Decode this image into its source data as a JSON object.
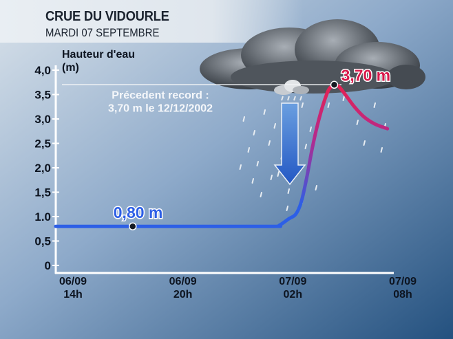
{
  "header": {
    "title": "CRUE DU VIDOURLE",
    "subtitle": "MARDI 07 SEPTEMBRE"
  },
  "chart_data": {
    "type": "line",
    "ylabel_line1": "Hauteur d'eau",
    "ylabel_line2": "(m)",
    "ylim": [
      0,
      4.0
    ],
    "yticks": [
      0,
      0.5,
      1.0,
      1.5,
      2.0,
      2.5,
      3.0,
      3.5,
      4.0
    ],
    "ytick_labels": [
      "0",
      "0,5",
      "1.0",
      "1,5",
      "2,0",
      "2,5",
      "3,0",
      "3,5",
      "4,0"
    ],
    "x_unit": "hours since 06/09 14h",
    "xlim": [
      0,
      18.3
    ],
    "xticks": [
      {
        "pos": 0,
        "line1": "06/09",
        "line2": "14h"
      },
      {
        "pos": 6,
        "line1": "06/09",
        "line2": "20h"
      },
      {
        "pos": 12,
        "line1": "07/09",
        "line2": "02h"
      },
      {
        "pos": 18,
        "line1": "07/09",
        "line2": "08h"
      }
    ],
    "series": [
      {
        "x": [
          0,
          4.2,
          8,
          11.9,
          12.2,
          12.7,
          13.1,
          13.4,
          13.7,
          14.0,
          14.3,
          14.6,
          14.9,
          15.2,
          15.4,
          15.6,
          15.9,
          16.3,
          16.8,
          17.4,
          18.1
        ],
        "y": [
          0.8,
          0.8,
          0.8,
          0.8,
          0.82,
          0.95,
          1.05,
          1.3,
          1.8,
          2.4,
          2.9,
          3.3,
          3.6,
          3.7,
          3.68,
          3.6,
          3.45,
          3.25,
          3.05,
          2.9,
          2.8
        ]
      }
    ],
    "annotations": [
      {
        "x": 4.2,
        "y": 0.8,
        "text": "0,80 m",
        "color": "#2d5fe6"
      },
      {
        "x": 15.2,
        "y": 3.7,
        "text": "3,70 m",
        "color": "#d8184a"
      }
    ],
    "record_line": {
      "y": 3.7,
      "text_line1": "Précedent record :",
      "text_line2": "3,70 m le 12/12/2002"
    },
    "colors": {
      "low": "#2d5fe6",
      "high": "#e8214f",
      "background": "#3e6ba0"
    }
  }
}
